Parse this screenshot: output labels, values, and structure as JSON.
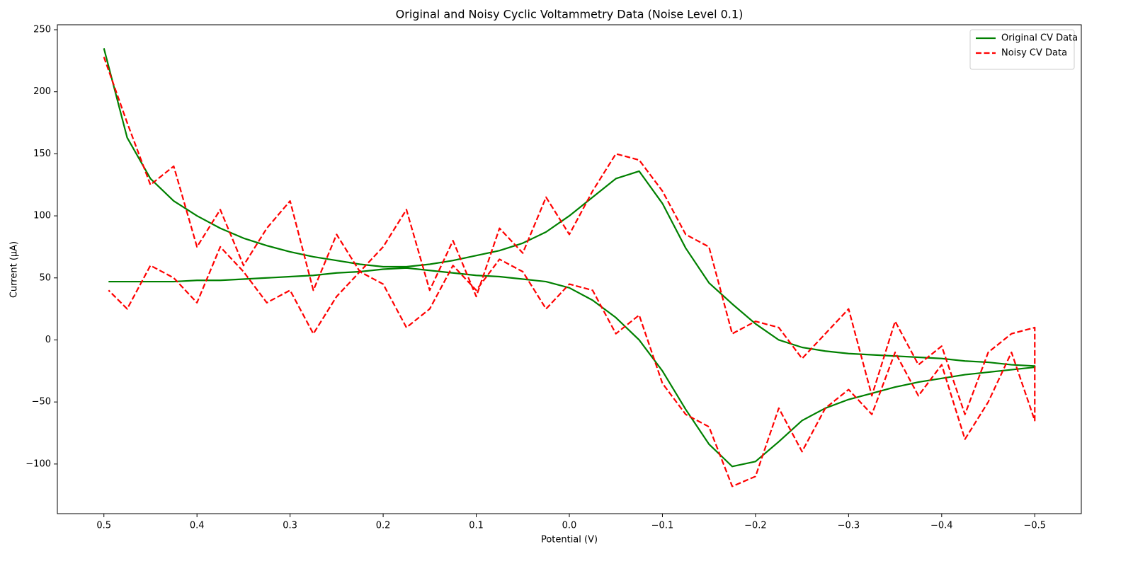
{
  "chart_data": {
    "type": "line",
    "title": "Original and Noisy Cyclic Voltammetry Data (Noise Level 0.1)",
    "xlabel": "Potential (V)",
    "ylabel": "Current (µA)",
    "x": [
      0.5,
      0.475,
      0.45,
      0.425,
      0.4,
      0.375,
      0.35,
      0.325,
      0.3,
      0.275,
      0.25,
      0.225,
      0.2,
      0.175,
      0.15,
      0.125,
      0.1,
      0.075,
      0.05,
      0.025,
      0,
      -0.025,
      -0.05,
      -0.075,
      -0.1,
      -0.125,
      -0.15,
      -0.175,
      -0.2,
      -0.225,
      -0.25,
      -0.275,
      -0.3,
      -0.325,
      -0.35,
      -0.375,
      -0.4,
      -0.425,
      -0.45,
      -0.475,
      -0.5,
      -0.5,
      -0.475,
      -0.45,
      -0.425,
      -0.4,
      -0.375,
      -0.35,
      -0.325,
      -0.3,
      -0.275,
      -0.25,
      -0.225,
      -0.2,
      -0.175,
      -0.15,
      -0.125,
      -0.1,
      -0.075,
      -0.05,
      -0.025,
      0,
      0.025,
      0.05,
      0.075,
      0.1,
      0.125,
      0.15,
      0.175,
      0.2,
      0.225,
      0.25,
      0.275,
      0.3,
      0.325,
      0.35,
      0.375,
      0.4,
      0.425,
      0.45,
      0.475,
      0.495
    ],
    "series": [
      {
        "name": "Original CV Data",
        "color": "#008000",
        "linestyle": "solid",
        "values": [
          235,
          163,
          130,
          112,
          100,
          90,
          82,
          76,
          71,
          67,
          64,
          61,
          59,
          59,
          61,
          64,
          68,
          72,
          78,
          87,
          100,
          115,
          130,
          136,
          110,
          74,
          46,
          29,
          13,
          0,
          -6,
          -9,
          -11,
          -12,
          -13,
          -14,
          -15,
          -17,
          -18,
          -20,
          -21,
          -22,
          -24,
          -26,
          -28,
          -31,
          -34,
          -38,
          -43,
          -48,
          -55,
          -65,
          -82,
          -98,
          -102,
          -84,
          -56,
          -25,
          0,
          18,
          32,
          42,
          47,
          49,
          51,
          52,
          54,
          56,
          58,
          57,
          55,
          54,
          52,
          51,
          50,
          49,
          48,
          48,
          47,
          47,
          47,
          47
        ]
      },
      {
        "name": "Noisy CV Data",
        "color": "#ff0000",
        "linestyle": "dashed",
        "values": [
          228,
          175,
          125,
          140,
          75,
          105,
          60,
          90,
          112,
          40,
          85,
          55,
          75,
          105,
          40,
          80,
          35,
          90,
          70,
          115,
          85,
          120,
          150,
          145,
          120,
          85,
          75,
          5,
          15,
          10,
          -15,
          5,
          25,
          -45,
          15,
          -20,
          -5,
          -60,
          -10,
          5,
          10,
          -65,
          -10,
          -50,
          -80,
          -20,
          -45,
          -10,
          -60,
          -40,
          -55,
          -90,
          -55,
          -110,
          -118,
          -70,
          -60,
          -35,
          20,
          5,
          40,
          45,
          25,
          55,
          65,
          40,
          60,
          25,
          10,
          45,
          55,
          35,
          5,
          40,
          30,
          55,
          75,
          30,
          50,
          60,
          25,
          40
        ]
      }
    ],
    "xlim": [
      0.55,
      -0.55
    ],
    "xticks": [
      0.5,
      0.4,
      0.3,
      0.2,
      0.1,
      {
        "value": 0,
        "label": "0.0"
      },
      {
        "value": -0.1,
        "label": "−0.1"
      },
      {
        "value": -0.2,
        "label": "−0.2"
      },
      {
        "value": -0.3,
        "label": "−0.3"
      },
      {
        "value": -0.4,
        "label": "−0.4"
      },
      {
        "value": -0.5,
        "label": "−0.5"
      }
    ],
    "ylim": [
      -140,
      254
    ],
    "yticks": [
      {
        "value": -100,
        "label": "−100"
      },
      {
        "value": -50,
        "label": "−50"
      },
      0,
      50,
      100,
      150,
      200,
      250
    ],
    "grid": false,
    "legend": "upper right"
  }
}
